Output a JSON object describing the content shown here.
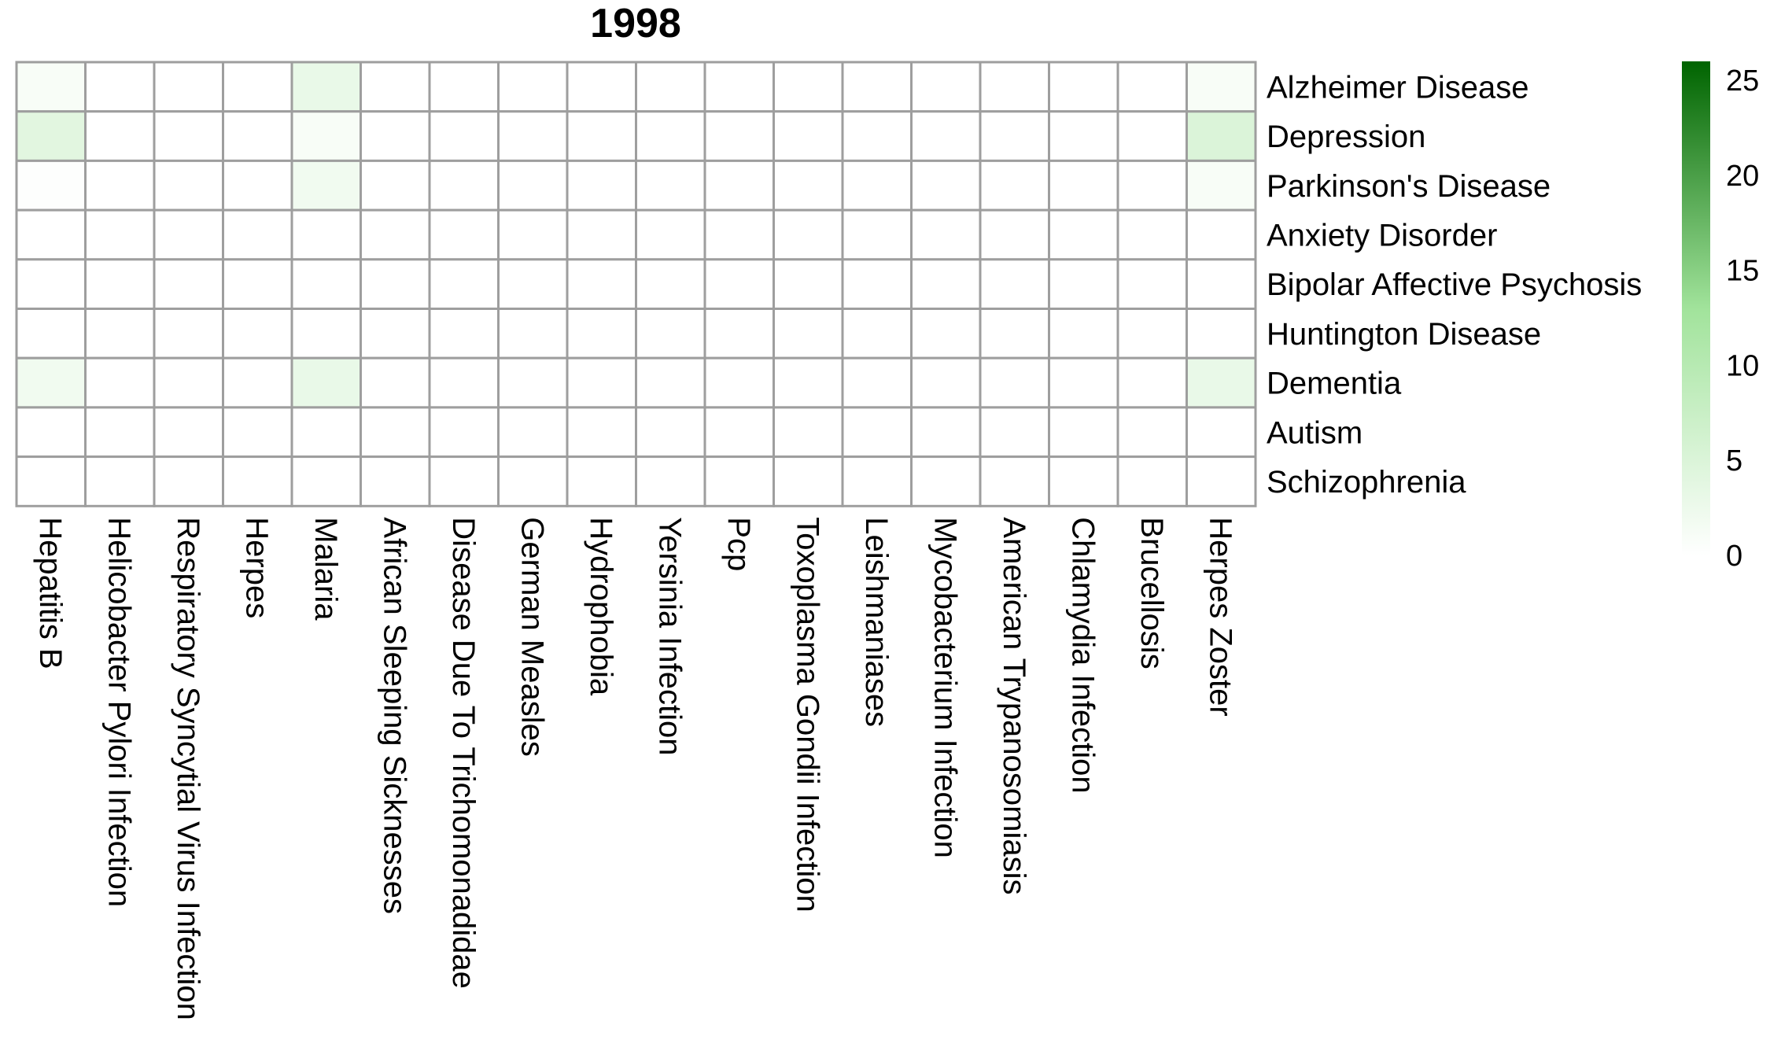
{
  "chart_data": {
    "type": "heatmap",
    "title": "1998",
    "columns": [
      "Hepatitis B",
      "Helicobacter Pylori Infection",
      "Respiratory Syncytial Virus Infection",
      "Herpes",
      "Malaria",
      "African Sleeping Sicknesses",
      "Disease Due To Trichomonadidae",
      "German Measles",
      "Hydrophobia",
      "Yersinia Infection",
      "Pcp",
      "Toxoplasma Gondii Infection",
      "Leishmaniases",
      "Mycobacterium Infection",
      "American Trypanosomiasis",
      "Chlamydia Infection",
      "Brucellosis",
      "Herpes Zoster"
    ],
    "rows": [
      "Alzheimer Disease",
      "Depression",
      "Parkinson's Disease",
      "Anxiety Disorder",
      "Bipolar Affective Psychosis",
      "Huntington Disease",
      "Dementia",
      "Autism",
      "Schizophrenia"
    ],
    "values": [
      [
        1,
        0,
        0,
        0,
        3,
        0,
        0,
        0,
        0,
        0,
        0,
        0,
        0,
        0,
        0,
        0,
        0,
        1
      ],
      [
        4,
        0,
        0,
        0,
        1,
        0,
        0,
        0,
        0,
        0,
        0,
        0,
        0,
        0,
        0,
        0,
        0,
        5
      ],
      [
        0.3,
        0,
        0,
        0,
        2,
        0,
        0,
        0,
        0,
        0,
        0,
        0,
        0,
        0,
        0,
        0,
        0,
        1
      ],
      [
        0,
        0,
        0,
        0,
        0,
        0,
        0,
        0,
        0,
        0,
        0,
        0,
        0,
        0,
        0,
        0,
        0,
        0
      ],
      [
        0,
        0,
        0,
        0,
        0,
        0,
        0,
        0,
        0,
        0,
        0,
        0,
        0,
        0,
        0,
        0,
        0,
        0
      ],
      [
        0,
        0,
        0,
        0,
        0,
        0,
        0,
        0,
        0,
        0,
        0,
        0,
        0,
        0,
        0,
        0,
        0,
        0
      ],
      [
        2,
        0,
        0,
        0,
        3,
        0,
        0,
        0,
        0,
        0,
        0,
        0,
        0,
        0,
        0,
        0,
        0,
        3
      ],
      [
        0,
        0,
        0,
        0,
        0,
        0,
        0,
        0,
        0,
        0,
        0,
        0,
        0,
        0,
        0,
        0,
        0,
        0
      ],
      [
        0,
        0,
        0,
        0,
        0,
        0,
        0,
        0,
        0,
        0,
        0,
        0,
        0,
        0,
        0,
        0,
        0,
        0
      ]
    ],
    "color_scale": {
      "min": 0,
      "max": 26,
      "ticks": [
        0,
        5,
        10,
        15,
        20,
        25
      ],
      "colors": [
        "#ffffff",
        "#a1e39b",
        "#006400"
      ]
    },
    "grid_color": "#9e9e9e",
    "legend": "right"
  }
}
